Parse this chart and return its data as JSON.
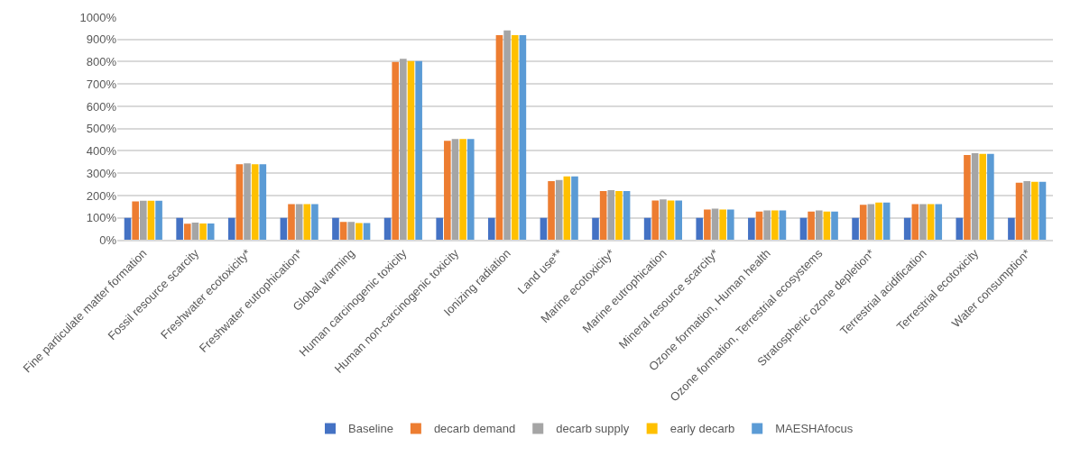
{
  "chart_data": {
    "type": "bar",
    "categories": [
      "Fine particulate matter formation",
      "Fossil resource scarcity",
      "Freshwater ecotoxicity*",
      "Freshwater eutrophication*",
      "Global warming",
      "Human carcinogenic toxicity",
      "Human non-carcinogenic toxicity",
      "Ionizing radiation",
      "Land use**",
      "Marine ecotoxicity*",
      "Marine eutrophication",
      "Mineral resource scarcity*",
      "Ozone formation, Human health",
      "Ozone formation, Terrestrial ecosystems",
      "Stratospheric ozone depletion*",
      "Terrestrial acidification",
      "Terrestrial ecotoxicity",
      "Water consumption*"
    ],
    "series": [
      {
        "name": "Baseline",
        "color": "#4472c4",
        "values": [
          100,
          100,
          100,
          100,
          100,
          100,
          100,
          100,
          100,
          100,
          100,
          100,
          100,
          100,
          100,
          100,
          100,
          100
        ]
      },
      {
        "name": "decarb demand",
        "color": "#ed7d31",
        "values": [
          174,
          74,
          340,
          161,
          82,
          799,
          445,
          919,
          265,
          220,
          178,
          137,
          128,
          128,
          158,
          161,
          382,
          257
        ]
      },
      {
        "name": "decarb supply",
        "color": "#a5a5a5",
        "values": [
          177,
          79,
          344,
          161,
          82,
          813,
          453,
          940,
          270,
          224,
          183,
          141,
          133,
          133,
          161,
          161,
          390,
          265
        ]
      },
      {
        "name": "early decarb",
        "color": "#ffc000",
        "values": [
          177,
          75,
          340,
          161,
          77,
          803,
          453,
          919,
          286,
          220,
          178,
          137,
          133,
          128,
          169,
          161,
          387,
          261
        ]
      },
      {
        "name": "MAESHAfocus",
        "color": "#5b9bd5",
        "values": [
          177,
          75,
          340,
          161,
          77,
          803,
          453,
          919,
          286,
          220,
          178,
          137,
          133,
          128,
          169,
          161,
          387,
          261
        ]
      }
    ],
    "ylim": [
      0,
      1000
    ],
    "yticks": [
      {
        "value": 0,
        "label": "0%"
      },
      {
        "value": 100,
        "label": "100%"
      },
      {
        "value": 200,
        "label": "200%"
      },
      {
        "value": 300,
        "label": "300%"
      },
      {
        "value": 400,
        "label": "400%"
      },
      {
        "value": 500,
        "label": "500%"
      },
      {
        "value": 600,
        "label": "600%"
      },
      {
        "value": 700,
        "label": "700%"
      },
      {
        "value": 800,
        "label": "800%"
      },
      {
        "value": 900,
        "label": "900%"
      },
      {
        "value": 1000,
        "label": "1000%"
      }
    ],
    "grid": "y",
    "legend": "bottom"
  }
}
